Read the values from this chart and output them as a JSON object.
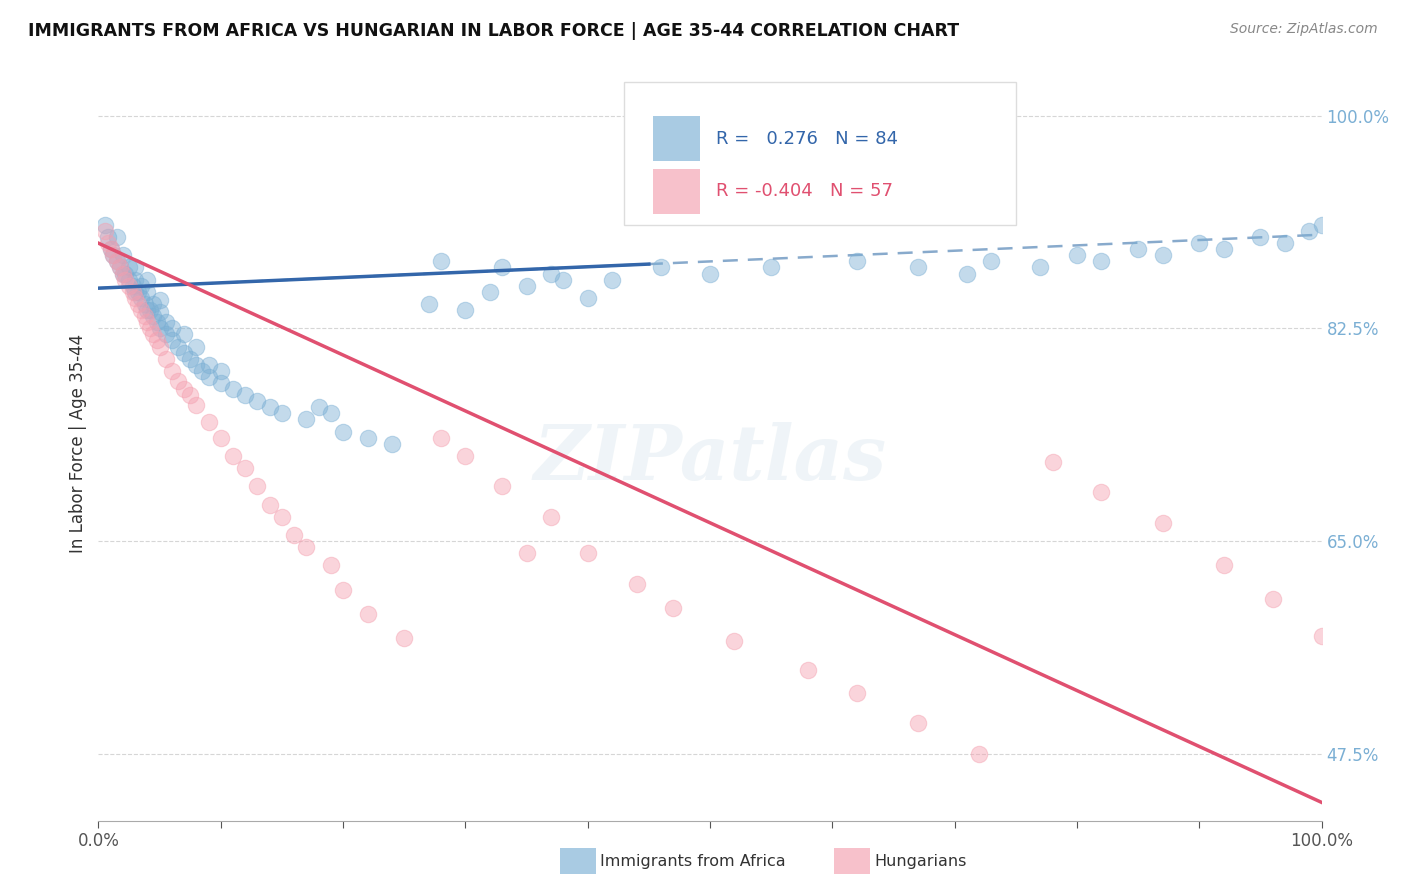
{
  "title": "IMMIGRANTS FROM AFRICA VS HUNGARIAN IN LABOR FORCE | AGE 35-44 CORRELATION CHART",
  "source": "Source: ZipAtlas.com",
  "ylabel": "In Labor Force | Age 35-44",
  "xlim": [
    0.0,
    1.0
  ],
  "ylim": [
    0.42,
    1.04
  ],
  "yticks": [
    0.475,
    0.65,
    0.825,
    1.0
  ],
  "ytick_labels": [
    "47.5%",
    "65.0%",
    "82.5%",
    "100.0%"
  ],
  "xticks": [
    0.0,
    0.1,
    0.2,
    0.3,
    0.4,
    0.5,
    0.6,
    0.7,
    0.8,
    0.9,
    1.0
  ],
  "xtick_labels": [
    "0.0%",
    "",
    "",
    "",
    "",
    "",
    "",
    "",
    "",
    "",
    "100.0%"
  ],
  "r_blue": 0.276,
  "n_blue": 84,
  "r_pink": -0.404,
  "n_pink": 57,
  "blue_color": "#7BAFD4",
  "pink_color": "#F4A0B0",
  "blue_line_color": "#3366AA",
  "pink_line_color": "#E05070",
  "dashed_line_color": "#88AACC",
  "watermark": "ZIPatlas",
  "legend_blue_label": "Immigrants from Africa",
  "legend_pink_label": "Hungarians",
  "blue_trend_x0": 0.0,
  "blue_trend_y0": 0.858,
  "blue_trend_x1": 0.45,
  "blue_trend_y1": 0.878,
  "blue_trend_slope": 0.044,
  "blue_trend_intercept": 0.858,
  "pink_trend_x0": 0.0,
  "pink_trend_y0": 0.895,
  "pink_trend_slope": -0.46,
  "pink_trend_intercept": 0.895,
  "blue_scatter_x": [
    0.005,
    0.008,
    0.01,
    0.012,
    0.015,
    0.015,
    0.018,
    0.02,
    0.02,
    0.022,
    0.025,
    0.025,
    0.028,
    0.03,
    0.03,
    0.03,
    0.032,
    0.035,
    0.035,
    0.038,
    0.04,
    0.04,
    0.04,
    0.042,
    0.045,
    0.045,
    0.048,
    0.05,
    0.05,
    0.05,
    0.055,
    0.055,
    0.06,
    0.06,
    0.065,
    0.07,
    0.07,
    0.075,
    0.08,
    0.08,
    0.085,
    0.09,
    0.09,
    0.1,
    0.1,
    0.11,
    0.12,
    0.13,
    0.14,
    0.15,
    0.17,
    0.18,
    0.19,
    0.2,
    0.22,
    0.24,
    0.27,
    0.3,
    0.32,
    0.35,
    0.38,
    0.4,
    0.28,
    0.33,
    0.37,
    0.42,
    0.46,
    0.5,
    0.55,
    0.62,
    0.67,
    0.71,
    0.73,
    0.77,
    0.8,
    0.82,
    0.85,
    0.87,
    0.9,
    0.92,
    0.95,
    0.97,
    0.99,
    1.0
  ],
  "blue_scatter_y": [
    0.91,
    0.9,
    0.89,
    0.885,
    0.88,
    0.9,
    0.875,
    0.87,
    0.885,
    0.87,
    0.865,
    0.875,
    0.86,
    0.855,
    0.865,
    0.875,
    0.855,
    0.85,
    0.86,
    0.845,
    0.84,
    0.855,
    0.865,
    0.84,
    0.835,
    0.845,
    0.83,
    0.825,
    0.838,
    0.848,
    0.82,
    0.83,
    0.815,
    0.825,
    0.81,
    0.805,
    0.82,
    0.8,
    0.795,
    0.81,
    0.79,
    0.785,
    0.795,
    0.78,
    0.79,
    0.775,
    0.77,
    0.765,
    0.76,
    0.755,
    0.75,
    0.76,
    0.755,
    0.74,
    0.735,
    0.73,
    0.845,
    0.84,
    0.855,
    0.86,
    0.865,
    0.85,
    0.88,
    0.875,
    0.87,
    0.865,
    0.875,
    0.87,
    0.875,
    0.88,
    0.875,
    0.87,
    0.88,
    0.875,
    0.885,
    0.88,
    0.89,
    0.885,
    0.895,
    0.89,
    0.9,
    0.895,
    0.905,
    0.91
  ],
  "pink_scatter_x": [
    0.005,
    0.008,
    0.01,
    0.012,
    0.015,
    0.018,
    0.02,
    0.022,
    0.025,
    0.028,
    0.03,
    0.032,
    0.035,
    0.038,
    0.04,
    0.042,
    0.045,
    0.048,
    0.05,
    0.055,
    0.06,
    0.065,
    0.07,
    0.075,
    0.08,
    0.09,
    0.1,
    0.11,
    0.12,
    0.13,
    0.15,
    0.17,
    0.2,
    0.22,
    0.25,
    0.28,
    0.3,
    0.33,
    0.37,
    0.4,
    0.44,
    0.47,
    0.52,
    0.58,
    0.62,
    0.67,
    0.72,
    0.78,
    0.82,
    0.87,
    0.92,
    0.96,
    1.0,
    0.14,
    0.16,
    0.19,
    0.35
  ],
  "pink_scatter_y": [
    0.905,
    0.895,
    0.89,
    0.885,
    0.88,
    0.875,
    0.87,
    0.865,
    0.86,
    0.855,
    0.85,
    0.845,
    0.84,
    0.835,
    0.83,
    0.825,
    0.82,
    0.815,
    0.81,
    0.8,
    0.79,
    0.782,
    0.775,
    0.77,
    0.762,
    0.748,
    0.735,
    0.72,
    0.71,
    0.695,
    0.67,
    0.645,
    0.61,
    0.59,
    0.57,
    0.735,
    0.72,
    0.695,
    0.67,
    0.64,
    0.615,
    0.595,
    0.568,
    0.544,
    0.525,
    0.5,
    0.475,
    0.715,
    0.69,
    0.665,
    0.63,
    0.602,
    0.572,
    0.68,
    0.655,
    0.63,
    0.64
  ]
}
